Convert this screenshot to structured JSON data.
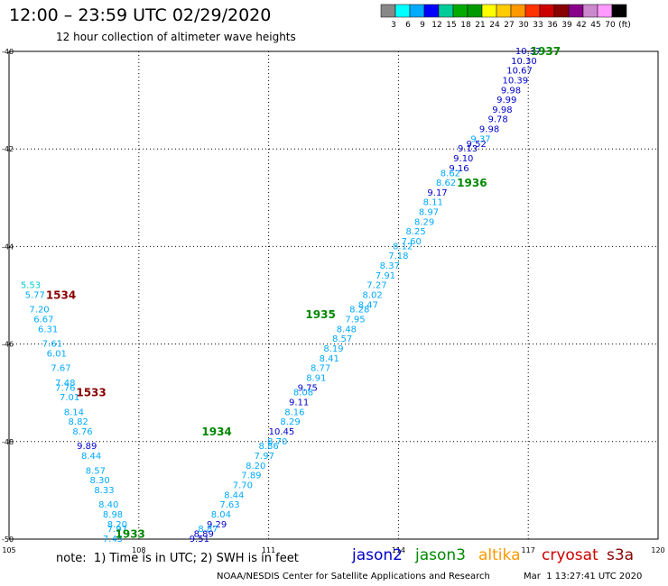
{
  "header": {
    "title": "12:00 – 23:59 UTC 02/29/2020",
    "subtitle": "12 hour collection of altimeter wave heights"
  },
  "color_scale": {
    "labels": [
      "3",
      "6",
      "9",
      "12",
      "15",
      "18",
      "21",
      "24",
      "27",
      "30",
      "33",
      "36",
      "39",
      "42",
      "45",
      "70",
      "(ft)"
    ],
    "colors": [
      "#888888",
      "#00ffff",
      "#00aaff",
      "#0000ff",
      "#00cc99",
      "#00aa00",
      "#009900",
      "#ffff00",
      "#ffcc00",
      "#ff9900",
      "#ff3300",
      "#cc0000",
      "#880000",
      "#880088",
      "#cc88cc",
      "#ff99ff",
      "#000000"
    ]
  },
  "footer": {
    "note": "note:  1) Time is in UTC; 2) SWH is in feet",
    "credit": "NOAA/NESDIS Center for Satellite Applications and Research",
    "stamp": "Mar  1 13:27:41 UTC 2020",
    "satellites": [
      {
        "name": "jason2",
        "color": "#0000cc"
      },
      {
        "name": "jason3",
        "color": "#008800"
      },
      {
        "name": "altika",
        "color": "#ff9900"
      },
      {
        "name": "cryosat",
        "color": "#cc0000"
      },
      {
        "name": "s3a",
        "color": "#880000"
      }
    ]
  },
  "chart_data": {
    "type": "scatter",
    "xlim": [
      105,
      120
    ],
    "ylim": [
      -50,
      -40
    ],
    "x_ticks": [
      "105",
      "108",
      "111",
      "114",
      "117",
      "120"
    ],
    "y_ticks": [
      "-40",
      "-42",
      "-44",
      "-46",
      "-48",
      "-50"
    ],
    "grid": true,
    "tracks": [
      {
        "x": 117.4,
        "y": -40.0,
        "label": "1937",
        "color": "#008800"
      },
      {
        "x": 115.7,
        "y": -42.7,
        "label": "1936",
        "color": "#008800"
      },
      {
        "x": 112.2,
        "y": -45.4,
        "label": "1935",
        "color": "#008800"
      },
      {
        "x": 109.8,
        "y": -47.8,
        "label": "1934",
        "color": "#008800"
      },
      {
        "x": 107.8,
        "y": -49.9,
        "label": "1933",
        "color": "#008800"
      },
      {
        "x": 106.2,
        "y": -45.0,
        "label": "1534",
        "color": "#880000"
      },
      {
        "x": 106.9,
        "y": -47.0,
        "label": "1533",
        "color": "#880000"
      }
    ],
    "points": [
      {
        "x": 117.0,
        "y": -40.0,
        "v": "10.37",
        "c": "#0000cc"
      },
      {
        "x": 116.9,
        "y": -40.2,
        "v": "10.30",
        "c": "#0000cc"
      },
      {
        "x": 116.8,
        "y": -40.4,
        "v": "10.67",
        "c": "#0000cc"
      },
      {
        "x": 116.7,
        "y": -40.6,
        "v": "10.39",
        "c": "#0000cc"
      },
      {
        "x": 116.6,
        "y": -40.8,
        "v": "9.98",
        "c": "#0000cc"
      },
      {
        "x": 116.5,
        "y": -41.0,
        "v": "9.99",
        "c": "#0000cc"
      },
      {
        "x": 116.4,
        "y": -41.2,
        "v": "9.98",
        "c": "#0000cc"
      },
      {
        "x": 116.3,
        "y": -41.4,
        "v": "9.78",
        "c": "#0000cc"
      },
      {
        "x": 116.1,
        "y": -41.6,
        "v": "9.98",
        "c": "#0000cc"
      },
      {
        "x": 115.9,
        "y": -41.8,
        "v": "9.37",
        "c": "#00aaff"
      },
      {
        "x": 115.8,
        "y": -41.9,
        "v": "9.52",
        "c": "#0000cc"
      },
      {
        "x": 115.6,
        "y": -42.0,
        "v": "9.13",
        "c": "#0000cc"
      },
      {
        "x": 115.5,
        "y": -42.2,
        "v": "9.10",
        "c": "#0000cc"
      },
      {
        "x": 115.4,
        "y": -42.4,
        "v": "9.16",
        "c": "#0000cc"
      },
      {
        "x": 115.2,
        "y": -42.5,
        "v": "8.62",
        "c": "#00aaff"
      },
      {
        "x": 115.1,
        "y": -42.7,
        "v": "8.62",
        "c": "#00aaff"
      },
      {
        "x": 114.9,
        "y": -42.9,
        "v": "9.17",
        "c": "#0000cc"
      },
      {
        "x": 114.8,
        "y": -43.1,
        "v": "8.11",
        "c": "#00aaff"
      },
      {
        "x": 114.7,
        "y": -43.3,
        "v": "8.97",
        "c": "#00aaff"
      },
      {
        "x": 114.6,
        "y": -43.5,
        "v": "8.29",
        "c": "#00aaff"
      },
      {
        "x": 114.4,
        "y": -43.7,
        "v": "8.25",
        "c": "#00aaff"
      },
      {
        "x": 114.3,
        "y": -43.9,
        "v": "7.60",
        "c": "#00aaff"
      },
      {
        "x": 114.1,
        "y": -44.0,
        "v": "8.12",
        "c": "#00aaff"
      },
      {
        "x": 114.0,
        "y": -44.2,
        "v": "7.18",
        "c": "#00aaff"
      },
      {
        "x": 113.8,
        "y": -44.4,
        "v": "8.37",
        "c": "#00aaff"
      },
      {
        "x": 113.7,
        "y": -44.6,
        "v": "7.91",
        "c": "#00aaff"
      },
      {
        "x": 113.5,
        "y": -44.8,
        "v": "7.27",
        "c": "#00aaff"
      },
      {
        "x": 113.4,
        "y": -45.0,
        "v": "8.02",
        "c": "#00aaff"
      },
      {
        "x": 113.3,
        "y": -45.2,
        "v": "8.47",
        "c": "#00aaff"
      },
      {
        "x": 113.1,
        "y": -45.3,
        "v": "8.28",
        "c": "#00aaff"
      },
      {
        "x": 113.0,
        "y": -45.5,
        "v": "7.95",
        "c": "#00aaff"
      },
      {
        "x": 112.8,
        "y": -45.7,
        "v": "8.48",
        "c": "#00aaff"
      },
      {
        "x": 112.7,
        "y": -45.9,
        "v": "8.57",
        "c": "#00aaff"
      },
      {
        "x": 112.5,
        "y": -46.1,
        "v": "8.19",
        "c": "#00aaff"
      },
      {
        "x": 112.4,
        "y": -46.3,
        "v": "8.41",
        "c": "#00aaff"
      },
      {
        "x": 112.2,
        "y": -46.5,
        "v": "8.77",
        "c": "#00aaff"
      },
      {
        "x": 112.1,
        "y": -46.7,
        "v": "8.91",
        "c": "#00aaff"
      },
      {
        "x": 111.9,
        "y": -46.9,
        "v": "9.75",
        "c": "#0000cc"
      },
      {
        "x": 111.8,
        "y": -47.0,
        "v": "8.08",
        "c": "#00aaff"
      },
      {
        "x": 111.7,
        "y": -47.2,
        "v": "9.11",
        "c": "#0000cc"
      },
      {
        "x": 111.6,
        "y": -47.4,
        "v": "8.16",
        "c": "#00aaff"
      },
      {
        "x": 111.5,
        "y": -47.6,
        "v": "8.29",
        "c": "#00aaff"
      },
      {
        "x": 111.3,
        "y": -47.8,
        "v": "10.45",
        "c": "#0000cc"
      },
      {
        "x": 111.2,
        "y": -48.0,
        "v": "8.70",
        "c": "#00aaff"
      },
      {
        "x": 111.0,
        "y": -48.1,
        "v": "8.86",
        "c": "#00aaff"
      },
      {
        "x": 110.9,
        "y": -48.3,
        "v": "7.97",
        "c": "#00aaff"
      },
      {
        "x": 110.7,
        "y": -48.5,
        "v": "8.20",
        "c": "#00aaff"
      },
      {
        "x": 110.6,
        "y": -48.7,
        "v": "7.89",
        "c": "#00aaff"
      },
      {
        "x": 110.4,
        "y": -48.9,
        "v": "7.70",
        "c": "#00aaff"
      },
      {
        "x": 110.2,
        "y": -49.1,
        "v": "8.44",
        "c": "#00aaff"
      },
      {
        "x": 110.1,
        "y": -49.3,
        "v": "7.63",
        "c": "#00aaff"
      },
      {
        "x": 109.9,
        "y": -49.5,
        "v": "8.04",
        "c": "#00aaff"
      },
      {
        "x": 109.8,
        "y": -49.7,
        "v": "9.29",
        "c": "#0000cc"
      },
      {
        "x": 109.6,
        "y": -49.8,
        "v": "8.87",
        "c": "#00aaff"
      },
      {
        "x": 109.5,
        "y": -49.9,
        "v": "8.89",
        "c": "#0000cc"
      },
      {
        "x": 109.4,
        "y": -50.0,
        "v": "9.51",
        "c": "#0000cc"
      },
      {
        "x": 105.5,
        "y": -44.8,
        "v": "5.53",
        "c": "#00cccc"
      },
      {
        "x": 105.6,
        "y": -45.0,
        "v": "5.77",
        "c": "#00aaff"
      },
      {
        "x": 105.7,
        "y": -45.3,
        "v": "7.20",
        "c": "#00aaff"
      },
      {
        "x": 105.8,
        "y": -45.5,
        "v": "6.67",
        "c": "#00aaff"
      },
      {
        "x": 105.9,
        "y": -45.7,
        "v": "6.31",
        "c": "#00aaff"
      },
      {
        "x": 106.0,
        "y": -46.0,
        "v": "7.61",
        "c": "#00aaff"
      },
      {
        "x": 106.1,
        "y": -46.2,
        "v": "6.01",
        "c": "#00aaff"
      },
      {
        "x": 106.2,
        "y": -46.5,
        "v": "7.67",
        "c": "#00aaff"
      },
      {
        "x": 106.3,
        "y": -46.8,
        "v": "7.48",
        "c": "#00aaff"
      },
      {
        "x": 106.3,
        "y": -46.9,
        "v": "7.76",
        "c": "#00aaff"
      },
      {
        "x": 106.4,
        "y": -47.1,
        "v": "7.01",
        "c": "#00aaff"
      },
      {
        "x": 106.5,
        "y": -47.4,
        "v": "8.14",
        "c": "#00aaff"
      },
      {
        "x": 106.6,
        "y": -47.6,
        "v": "8.82",
        "c": "#00aaff"
      },
      {
        "x": 106.7,
        "y": -47.8,
        "v": "8.76",
        "c": "#00aaff"
      },
      {
        "x": 106.8,
        "y": -48.1,
        "v": "9.89",
        "c": "#0000cc"
      },
      {
        "x": 106.9,
        "y": -48.3,
        "v": "8.44",
        "c": "#00aaff"
      },
      {
        "x": 107.0,
        "y": -48.6,
        "v": "8.57",
        "c": "#00aaff"
      },
      {
        "x": 107.1,
        "y": -48.8,
        "v": "8.30",
        "c": "#00aaff"
      },
      {
        "x": 107.2,
        "y": -49.0,
        "v": "8.33",
        "c": "#00aaff"
      },
      {
        "x": 107.3,
        "y": -49.3,
        "v": "8.40",
        "c": "#00aaff"
      },
      {
        "x": 107.4,
        "y": -49.5,
        "v": "8.98",
        "c": "#00aaff"
      },
      {
        "x": 107.5,
        "y": -49.7,
        "v": "8.20",
        "c": "#00aaff"
      },
      {
        "x": 107.5,
        "y": -49.8,
        "v": "7.97",
        "c": "#00aaff"
      },
      {
        "x": 107.4,
        "y": -50.0,
        "v": "7.45",
        "c": "#00aaff"
      }
    ]
  }
}
